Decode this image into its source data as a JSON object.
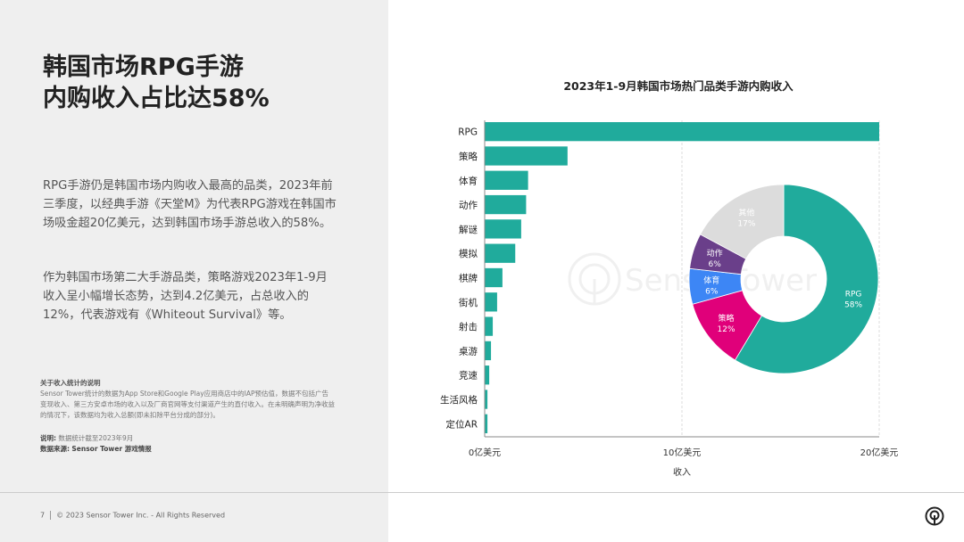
{
  "left": {
    "title_line1": "韩国市场RPG手游",
    "title_line2": "内购收入占比达58%",
    "paragraph1": "RPG手游仍是韩国市场内购收入最高的品类，2023年前三季度，以经典手游《天堂M》为代表RPG游戏在韩国市场吸金超20亿美元，达到韩国市场手游总收入的58%。",
    "paragraph2": "作为韩国市场第二大手游品类，策略游戏2023年1-9月收入呈小幅增长态势，达到4.2亿美元，占总收入的12%，代表游戏有《Whiteout Survival》等。",
    "note_title": "关于收入统计的说明",
    "note_body": "Sensor Tower统计的数据为App Store和Google Play应用商店中的IAP预估值，数据不包括广告变现收入、第三方安卓市场的收入以及厂商官网等支付渠道产生的直付收入。在未明确声明为净收益的情况下，该数据均为收入总额(即未扣除平台分成的部分)。",
    "explain_label": "说明:",
    "explain_text": "数据统计截至2023年9月",
    "source_label": "数据来源:",
    "source_text": "Sensor Tower 游戏情报"
  },
  "footer": {
    "page_number": "7",
    "copyright": "© 2023 Sensor Tower Inc. - All Rights Reserved"
  },
  "watermark": "SensorTower",
  "chart_data": [
    {
      "type": "bar",
      "orientation": "horizontal",
      "title": "2023年1-9月韩国市场热门品类手游内购收入",
      "xlabel": "收入",
      "ylabel": "",
      "unit": "亿美元",
      "categories": [
        "RPG",
        "策略",
        "体育",
        "动作",
        "解谜",
        "模拟",
        "棋牌",
        "街机",
        "射击",
        "桌游",
        "竞速",
        "生活风格",
        "定位AR"
      ],
      "values": [
        20.0,
        4.2,
        2.2,
        2.1,
        1.85,
        1.55,
        0.9,
        0.63,
        0.41,
        0.32,
        0.23,
        0.14,
        0.14
      ],
      "xlim": [
        0,
        20
      ],
      "xticks": [
        0,
        10,
        20
      ],
      "xtick_labels": [
        "0亿美元",
        "10亿美元",
        "20亿美元"
      ],
      "grid": "vertical",
      "color": "#20ab9c"
    },
    {
      "type": "pie",
      "donut": true,
      "slices": [
        {
          "label": "RPG",
          "percent_label": "58%",
          "value": 58,
          "color": "#20ab9c"
        },
        {
          "label": "策略",
          "percent_label": "12%",
          "value": 12,
          "color": "#e0007a"
        },
        {
          "label": "体育",
          "percent_label": "6%",
          "value": 6,
          "color": "#3d86f5"
        },
        {
          "label": "动作",
          "percent_label": "6%",
          "value": 6,
          "color": "#6a3f8a"
        },
        {
          "label": "其他",
          "percent_label": "17%",
          "value": 17,
          "color": "#dcdcdc"
        }
      ]
    }
  ]
}
